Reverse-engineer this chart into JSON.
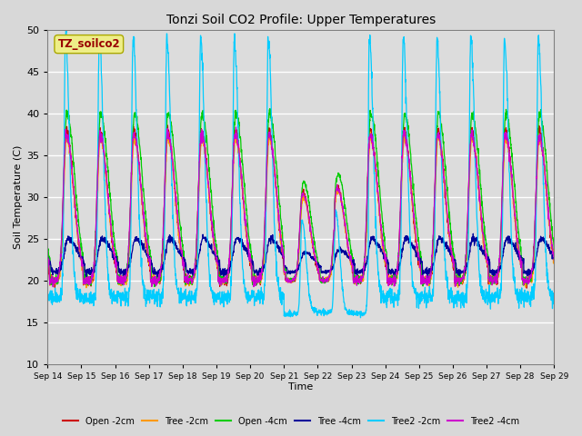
{
  "title": "Tonzi Soil CO2 Profile: Upper Temperatures",
  "xlabel": "Time",
  "ylabel": "Soil Temperature (C)",
  "ylim": [
    10,
    50
  ],
  "n_days": 15,
  "start_day": 14,
  "series_names": [
    "Open -2cm",
    "Tree -2cm",
    "Open -4cm",
    "Tree -4cm",
    "Tree2 -2cm",
    "Tree2 -4cm"
  ],
  "series_colors": [
    "#cc0000",
    "#ff9900",
    "#00cc00",
    "#000099",
    "#00ccff",
    "#cc00cc"
  ],
  "legend_label": "TZ_soilco2",
  "bg_color": "#dcdcdc",
  "grid_color": "#ffffff",
  "tick_labels": [
    "Sep 14",
    "Sep 15",
    "Sep 16",
    "Sep 17",
    "Sep 18",
    "Sep 19",
    "Sep 20",
    "Sep 21",
    "Sep 22",
    "Sep 23",
    "Sep 24",
    "Sep 25",
    "Sep 26",
    "Sep 27",
    "Sep 28",
    "Sep 29"
  ]
}
